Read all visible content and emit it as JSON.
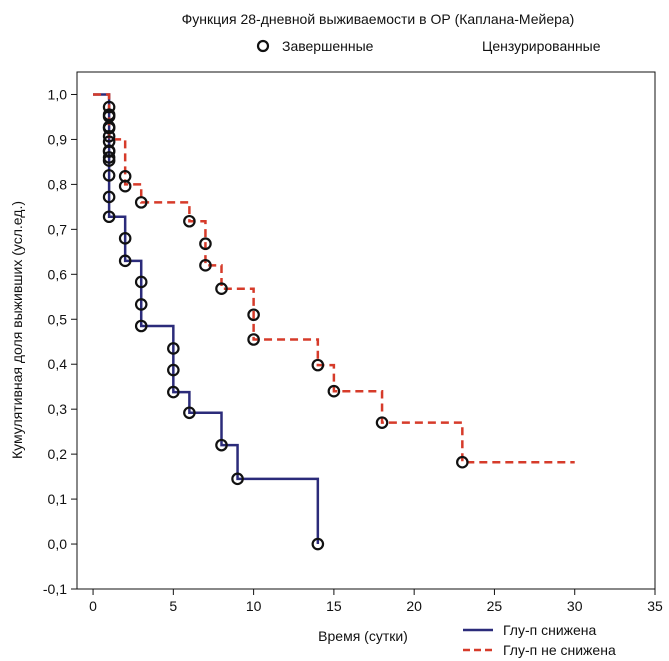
{
  "chart_data": {
    "type": "line",
    "title": "Функция 28-дневной выживаемости в ОР (Каплана-Мейера)",
    "xlabel": "Время (сутки)",
    "ylabel": "Кумулятивная доля выживших (усл.ед.)",
    "xlim": [
      -1,
      35
    ],
    "ylim": [
      -0.1,
      1.05
    ],
    "x_ticks": [
      0,
      5,
      10,
      15,
      20,
      25,
      30,
      35
    ],
    "y_ticks": [
      -0.1,
      0.0,
      0.1,
      0.2,
      0.3,
      0.4,
      0.5,
      0.6,
      0.7,
      0.8,
      0.9,
      1.0
    ],
    "x_tick_labels": [
      "0",
      "5",
      "10",
      "15",
      "20",
      "25",
      "30",
      "35"
    ],
    "y_tick_labels": [
      "-0,1",
      "0,0",
      "0,1",
      "0,2",
      "0,3",
      "0,4",
      "0,5",
      "0,6",
      "0,7",
      "0,8",
      "0,9",
      "1,0"
    ],
    "marker_legend": {
      "completed": "Завершенные",
      "censored": "Цензурированные"
    },
    "grid": false,
    "legend_position": "bottom-right",
    "series": [
      {
        "name": "Глу-п снижена",
        "color": "#2b2b7a",
        "style": "solid",
        "steps": [
          [
            0,
            1.0
          ],
          [
            1,
            0.728
          ],
          [
            2,
            0.63
          ],
          [
            3,
            0.485
          ],
          [
            5,
            0.338
          ],
          [
            6,
            0.292
          ],
          [
            8,
            0.22
          ],
          [
            9,
            0.145
          ],
          [
            14,
            0.0
          ]
        ],
        "events": [
          [
            1,
            0.972
          ],
          [
            1,
            0.951
          ],
          [
            1,
            0.928
          ],
          [
            1,
            0.907
          ],
          [
            1,
            0.875
          ],
          [
            1,
            0.86
          ],
          [
            1,
            0.82
          ],
          [
            1,
            0.772
          ],
          [
            1,
            0.728
          ],
          [
            2,
            0.68
          ],
          [
            2,
            0.63
          ],
          [
            3,
            0.583
          ],
          [
            3,
            0.533
          ],
          [
            3,
            0.485
          ],
          [
            5,
            0.435
          ],
          [
            5,
            0.387
          ],
          [
            5,
            0.338
          ],
          [
            6,
            0.292
          ],
          [
            8,
            0.22
          ],
          [
            9,
            0.145
          ],
          [
            14,
            0.0
          ]
        ]
      },
      {
        "name": "Глу-п не снижена",
        "color": "#d63b2a",
        "style": "dashed",
        "steps": [
          [
            0,
            1.0
          ],
          [
            1,
            0.9
          ],
          [
            2,
            0.8
          ],
          [
            3,
            0.76
          ],
          [
            6,
            0.718
          ],
          [
            7,
            0.62
          ],
          [
            8,
            0.568
          ],
          [
            10,
            0.455
          ],
          [
            14,
            0.398
          ],
          [
            15,
            0.34
          ],
          [
            18,
            0.27
          ],
          [
            23,
            0.182
          ]
        ],
        "end_x": 30,
        "events": [
          [
            1,
            0.955
          ],
          [
            1,
            0.925
          ],
          [
            1,
            0.895
          ],
          [
            1,
            0.873
          ],
          [
            1,
            0.853
          ],
          [
            2,
            0.818
          ],
          [
            2,
            0.796
          ],
          [
            3,
            0.76
          ],
          [
            6,
            0.718
          ],
          [
            7,
            0.668
          ],
          [
            7,
            0.62
          ],
          [
            8,
            0.568
          ],
          [
            10,
            0.51
          ],
          [
            10,
            0.455
          ],
          [
            14,
            0.398
          ],
          [
            15,
            0.34
          ],
          [
            18,
            0.27
          ],
          [
            23,
            0.182
          ]
        ]
      }
    ]
  }
}
